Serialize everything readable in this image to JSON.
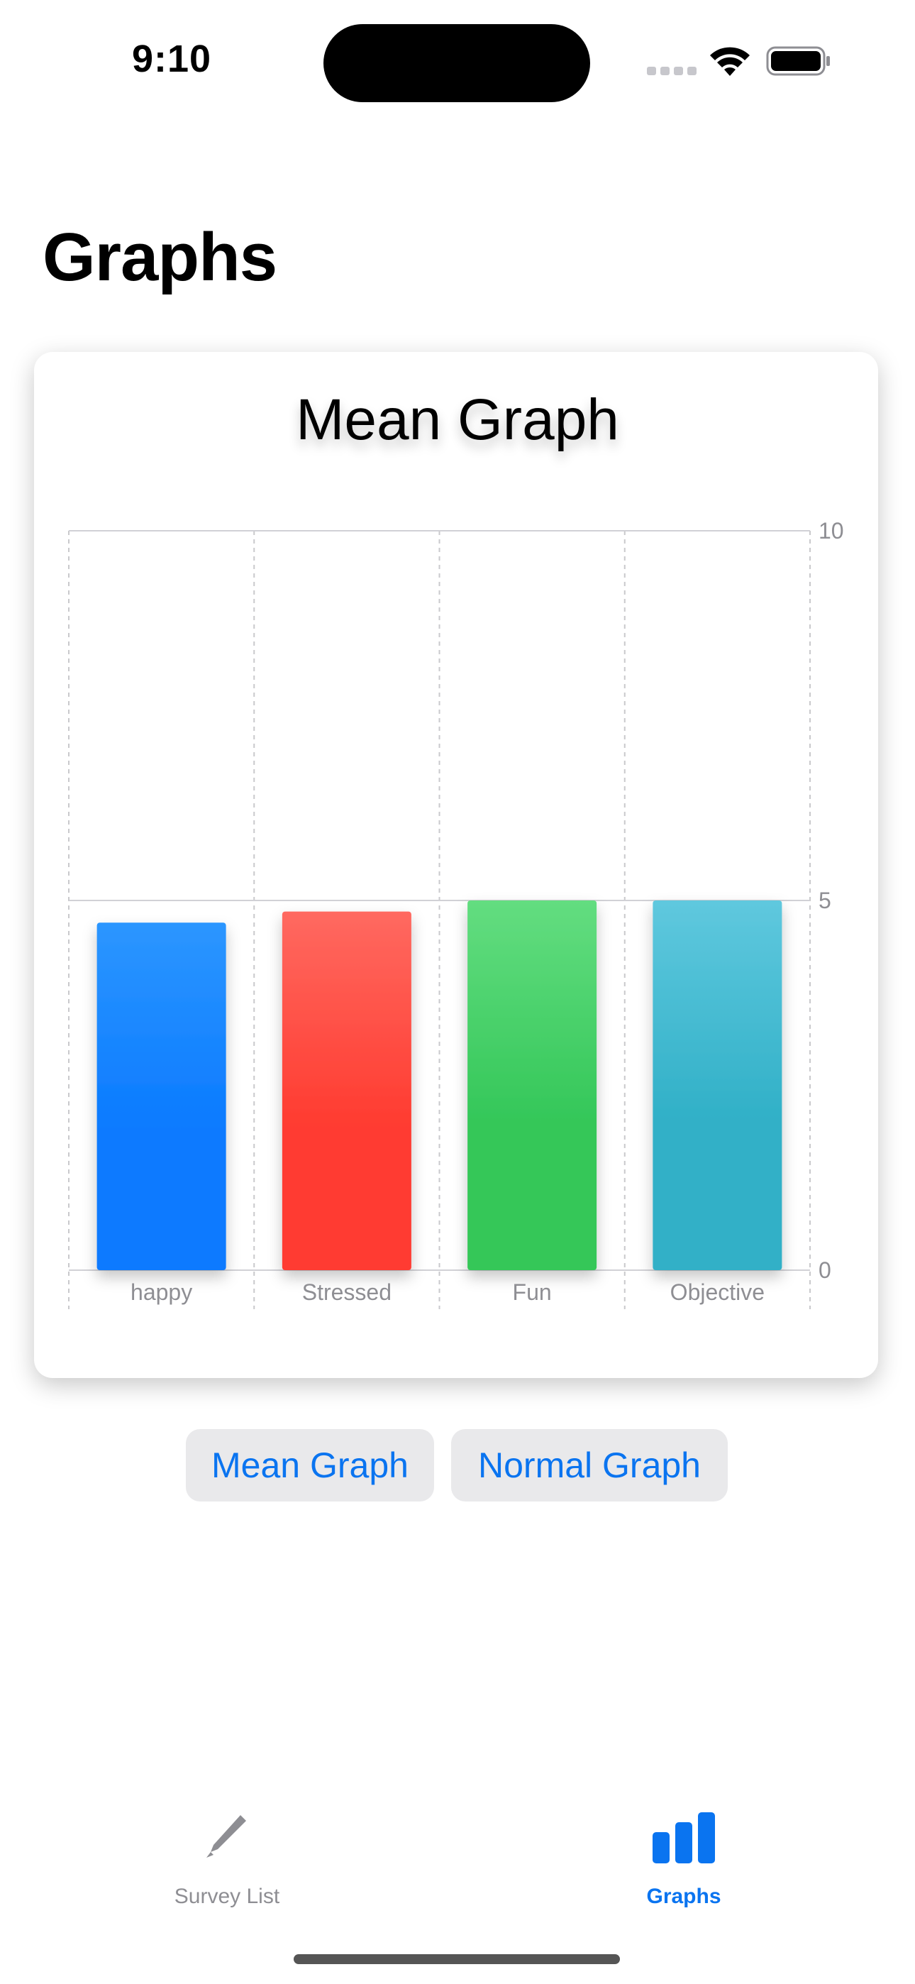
{
  "status_bar": {
    "time": "9:10",
    "icons": [
      "signal-icon",
      "wifi-icon",
      "battery-icon"
    ]
  },
  "page": {
    "title": "Graphs"
  },
  "card": {
    "title": "Mean Graph"
  },
  "chart_data": {
    "type": "bar",
    "title": "Mean Graph",
    "categories": [
      "happy",
      "Stressed",
      "Fun",
      "Objective"
    ],
    "values": [
      4.7,
      4.85,
      5.0,
      5.0
    ],
    "colors": [
      [
        "#2c96ff",
        "#0a7aff"
      ],
      [
        "#ff6960",
        "#ff3b30"
      ],
      [
        "#63dd80",
        "#34c759"
      ],
      [
        "#5fc8de",
        "#30b0c7"
      ]
    ],
    "ylim": [
      0,
      10
    ],
    "yticks": [
      "0",
      "5",
      "10"
    ],
    "xlabel": "",
    "ylabel": "",
    "grid": true,
    "y_axis_position": "right"
  },
  "buttons": {
    "mean": "Mean Graph",
    "normal": "Normal Graph"
  },
  "tab_bar": {
    "items": [
      {
        "label": "Survey List",
        "icon": "pencil-icon",
        "selected": false
      },
      {
        "label": "Graphs",
        "icon": "bar-chart-icon",
        "selected": true
      }
    ],
    "accent": "#0a74f0",
    "inactive": "#8e8e93"
  }
}
